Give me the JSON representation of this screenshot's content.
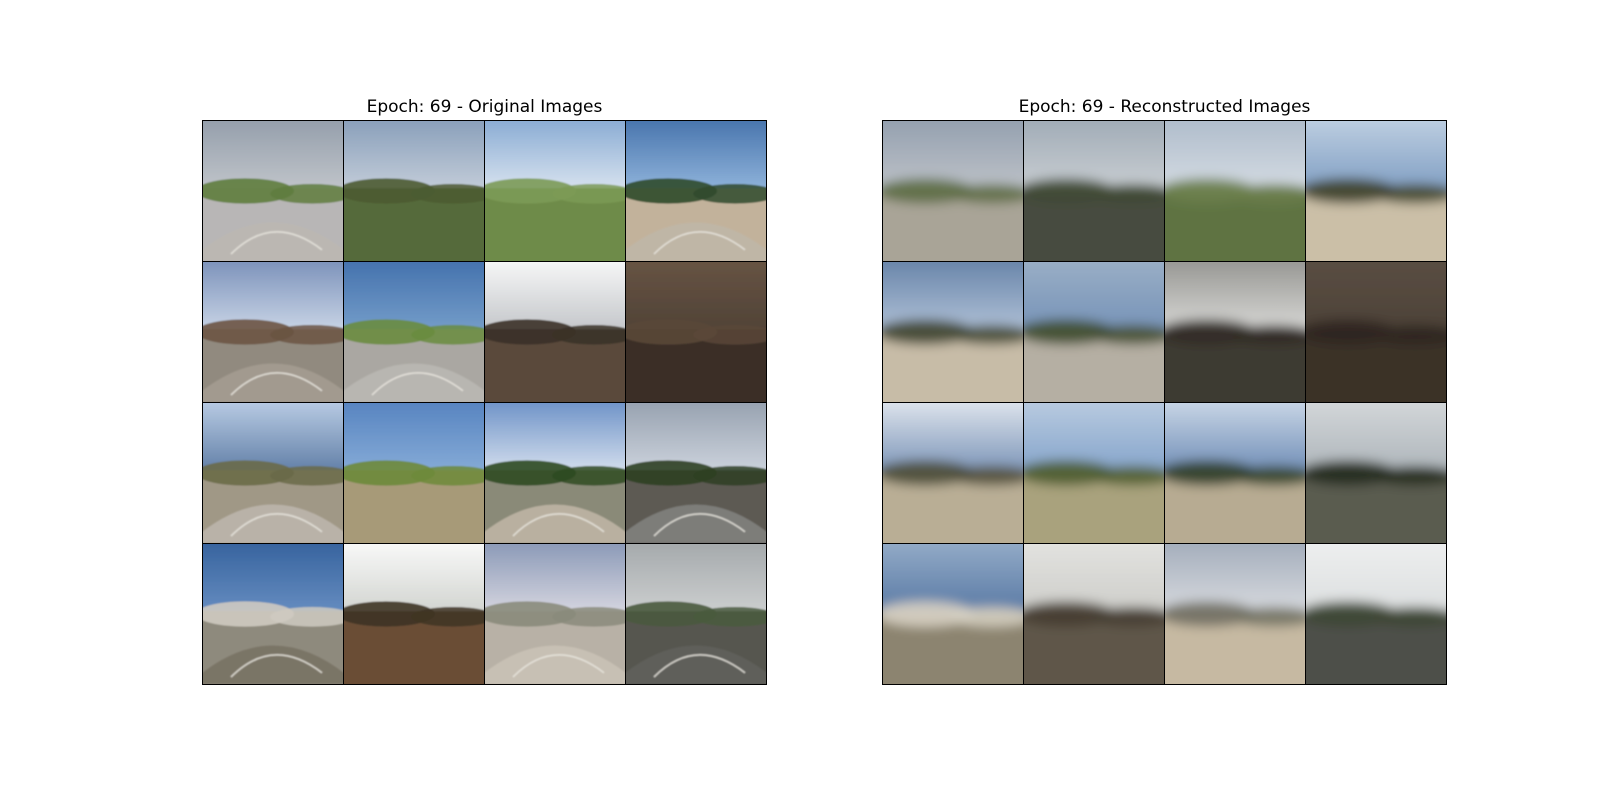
{
  "panels": [
    {
      "title": "Epoch: 69 - Original Images",
      "kind": "original",
      "tiles": [
        {
          "sky": "#c9ccd0",
          "sky2": "#8d98a6",
          "ground": "#b8b6b6",
          "mid": "#5f7d3e",
          "road": "#bbb7b2",
          "scene": "road-fisheye"
        },
        {
          "sky": "#cfd6df",
          "sky2": "#7f97b5",
          "ground": "#556b3a",
          "mid": "#4c5b33",
          "road": null,
          "scene": "hill-field"
        },
        {
          "sky": "#e8eef4",
          "sky2": "#7ca2cf",
          "ground": "#6e8b48",
          "mid": "#7b9a56",
          "road": null,
          "scene": "field-pole"
        },
        {
          "sky": "#9ec0e4",
          "sky2": "#3c6aa5",
          "ground": "#c2b29b",
          "mid": "#2f4a2b",
          "road": "#bfb6a6",
          "scene": "road-trees"
        },
        {
          "sky": "#d9e2ef",
          "sky2": "#6f87b3",
          "ground": "#918a7f",
          "mid": "#6b5443",
          "road": "#a29a8f",
          "scene": "road-fisheye-trees"
        },
        {
          "sky": "#7ea6cf",
          "sky2": "#3c6aa8",
          "ground": "#aaa7a2",
          "mid": "#6a8c3f",
          "road": "#b8b6b1",
          "scene": "overpass"
        },
        {
          "sky": "#b9bcc0",
          "sky2": "#ffffff",
          "ground": "#5a4a3a",
          "mid": "#3a3128",
          "road": null,
          "scene": "sun-forest"
        },
        {
          "sky": "#4b3e33",
          "sky2": "#6b5746",
          "ground": "#3a2f25",
          "mid": "#5a4738",
          "road": null,
          "scene": "dense-forest"
        },
        {
          "sky": "#4f6f9a",
          "sky2": "#c7d8ee",
          "ground": "#a09886",
          "mid": "#6a6a48",
          "road": "#b9b2a8",
          "scene": "road-sun"
        },
        {
          "sky": "#8fb3dc",
          "sky2": "#4f7dbc",
          "ground": "#a79a78",
          "mid": "#6d8a3a",
          "road": null,
          "scene": "field-tree"
        },
        {
          "sky": "#e9eef5",
          "sky2": "#5d86c1",
          "ground": "#8a8a78",
          "mid": "#2e4a22",
          "road": "#b9b0a0",
          "scene": "road-fisheye-trees2"
        },
        {
          "sky": "#d7dde6",
          "sky2": "#8e99a8",
          "ground": "#5d5a52",
          "mid": "#2e4023",
          "road": "#7d7d79",
          "scene": "station"
        },
        {
          "sky": "#6f95c7",
          "sky2": "#2f5c98",
          "ground": "#8e8a7d",
          "mid": "#cfcac1",
          "road": "#7a7466",
          "scene": "snow-road"
        },
        {
          "sky": "#c9ccc7",
          "sky2": "#ffffff",
          "ground": "#6b4e36",
          "mid": "#3e3425",
          "road": null,
          "scene": "pine-forest"
        },
        {
          "sky": "#e5e2e8",
          "sky2": "#7e8fb0",
          "ground": "#b8b1a6",
          "mid": "#8a8b7b",
          "road": "#c7c0b4",
          "scene": "clouds-road"
        },
        {
          "sky": "#d4d6d6",
          "sky2": "#9ea3a6",
          "ground": "#56574f",
          "mid": "#4a5a3e",
          "road": "#5f5f5a",
          "scene": "rain-lens"
        }
      ]
    },
    {
      "title": "Epoch: 69 - Reconstructed Images",
      "kind": "reconstructed",
      "tiles": [
        {
          "sky": "#c6c9cd",
          "sky2": "#8d9aab",
          "ground": "#a9a497",
          "mid": "#5c6b42"
        },
        {
          "sky": "#d1d5d8",
          "sky2": "#9aa6b2",
          "ground": "#474c3f",
          "mid": "#3f4a33"
        },
        {
          "sky": "#dce2e8",
          "sky2": "#a9b7c7",
          "ground": "#5e7342",
          "mid": "#6c7f4c"
        },
        {
          "sky": "#7495bd",
          "sky2": "#c7d6e6",
          "ground": "#cbbfa7",
          "mid": "#3b3f28"
        },
        {
          "sky": "#bfcde0",
          "sky2": "#5d7ba2",
          "ground": "#c7bca7",
          "mid": "#3d4430"
        },
        {
          "sky": "#6f8db5",
          "sky2": "#9fb3c8",
          "ground": "#b5afa3",
          "mid": "#3d4a2b"
        },
        {
          "sky": "#e6e6e4",
          "sky2": "#8c8c88",
          "ground": "#3e3a33",
          "mid": "#2f2a24"
        },
        {
          "sky": "#4a3f35",
          "sky2": "#5c5045",
          "ground": "#3a3128",
          "mid": "#2e2620"
        },
        {
          "sky": "#6784ad",
          "sky2": "#eef1f5",
          "ground": "#b9ae95",
          "mid": "#4a4a37"
        },
        {
          "sky": "#7a9cc6",
          "sky2": "#c1d1e4",
          "ground": "#a9a27d",
          "mid": "#4a5b2d"
        },
        {
          "sky": "#5e7fad",
          "sky2": "#d7e2ee",
          "ground": "#b7ab92",
          "mid": "#2c3c26"
        },
        {
          "sky": "#a6aeb4",
          "sky2": "#d9dcde",
          "ground": "#5a5b50",
          "mid": "#22291c"
        },
        {
          "sky": "#4d6f9d",
          "sky2": "#9cb3cd",
          "ground": "#8c8470",
          "mid": "#d8d2c4"
        },
        {
          "sky": "#c9c9c5",
          "sky2": "#e6e6e3",
          "ground": "#5f574a",
          "mid": "#443c31"
        },
        {
          "sky": "#e3e4e6",
          "sky2": "#9ba6b6",
          "ground": "#c6b9a2",
          "mid": "#6f6e62"
        },
        {
          "sky": "#d8dbdc",
          "sky2": "#f0f1f1",
          "ground": "#4e4f49",
          "mid": "#3c4533"
        }
      ]
    }
  ]
}
